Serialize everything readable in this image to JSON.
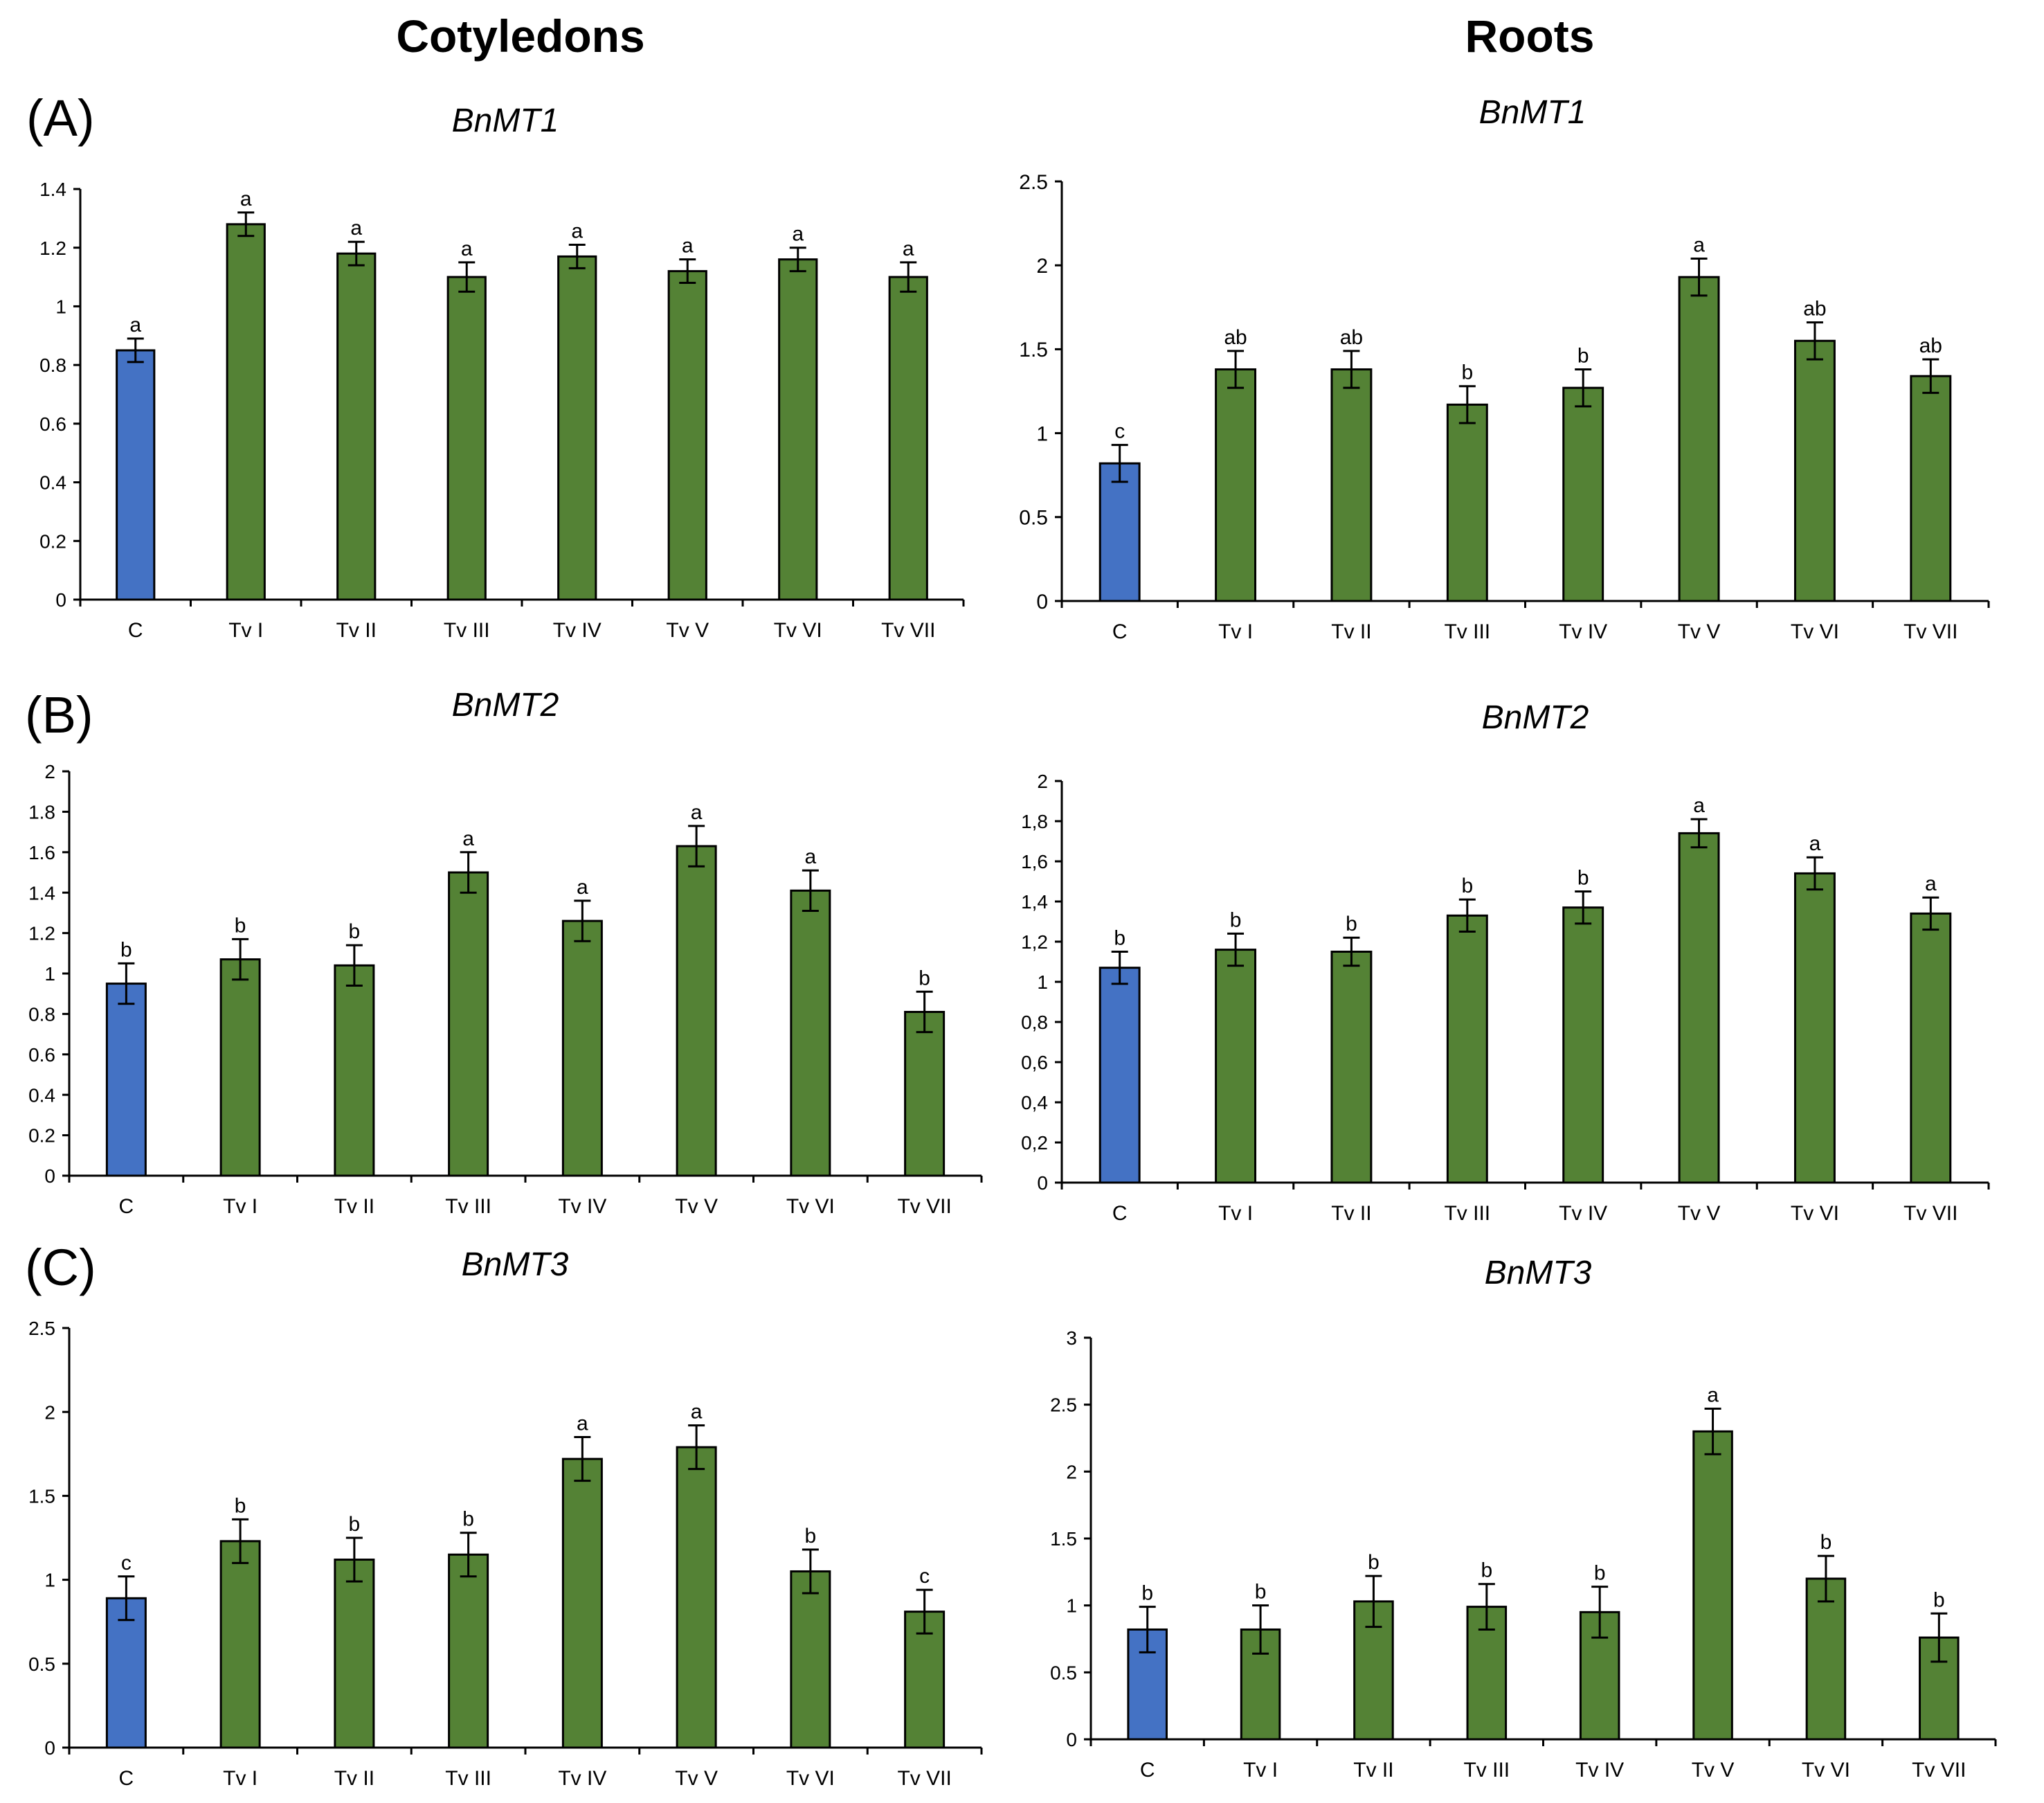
{
  "figure": {
    "column_titles": [
      "Cotyledons",
      "Roots"
    ],
    "panel_labels": [
      "(A)",
      "(B)",
      "(C)"
    ],
    "colors": {
      "control": "#4472c4",
      "treatment": "#548235",
      "stroke": "#000000"
    }
  },
  "chart_data": [
    {
      "type": "bar",
      "title": "BnMT1",
      "tissue": "Cotyledons",
      "panel": "(A)",
      "categories": [
        "C",
        "Tv I",
        "Tv II",
        "Tv III",
        "Tv IV",
        "Tv V",
        "Tv VI",
        "Tv VII"
      ],
      "values": [
        0.85,
        1.28,
        1.18,
        1.1,
        1.17,
        1.12,
        1.16,
        1.1
      ],
      "errors": [
        0.04,
        0.04,
        0.04,
        0.05,
        0.04,
        0.04,
        0.04,
        0.05
      ],
      "letters": [
        "a",
        "a",
        "a",
        "a",
        "a",
        "a",
        "a",
        "a"
      ],
      "ylim": [
        0,
        1.4
      ],
      "yticks": [
        0,
        0.2,
        0.4,
        0.6,
        0.8,
        1,
        1.2,
        1.4
      ],
      "ytick_labels": [
        "0",
        "0.2",
        "0.4",
        "0.6",
        "0.8",
        "1",
        "1.2",
        "1.4"
      ]
    },
    {
      "type": "bar",
      "title": "BnMT1",
      "tissue": "Roots",
      "panel": "(A)",
      "categories": [
        "C",
        "Tv I",
        "Tv II",
        "Tv III",
        "Tv IV",
        "Tv V",
        "Tv VI",
        "Tv VII"
      ],
      "values": [
        0.82,
        1.38,
        1.38,
        1.17,
        1.27,
        1.93,
        1.55,
        1.34
      ],
      "errors": [
        0.11,
        0.11,
        0.11,
        0.11,
        0.11,
        0.11,
        0.11,
        0.1
      ],
      "letters": [
        "c",
        "ab",
        "ab",
        "b",
        "b",
        "a",
        "ab",
        "ab"
      ],
      "ylim": [
        0,
        2.5
      ],
      "yticks": [
        0,
        0.5,
        1,
        1.5,
        2,
        2.5
      ],
      "ytick_labels": [
        "0",
        "0.5",
        "1",
        "1.5",
        "2",
        "2.5"
      ]
    },
    {
      "type": "bar",
      "title": "BnMT2",
      "tissue": "Cotyledons",
      "panel": "(B)",
      "categories": [
        "C",
        "Tv I",
        "Tv II",
        "Tv III",
        "Tv IV",
        "Tv V",
        "Tv VI",
        "Tv VII"
      ],
      "values": [
        0.95,
        1.07,
        1.04,
        1.5,
        1.26,
        1.63,
        1.41,
        0.81
      ],
      "errors": [
        0.1,
        0.1,
        0.1,
        0.1,
        0.1,
        0.1,
        0.1,
        0.1
      ],
      "letters": [
        "b",
        "b",
        "b",
        "a",
        "a",
        "a",
        "a",
        "b"
      ],
      "ylim": [
        0,
        2
      ],
      "yticks": [
        0,
        0.2,
        0.4,
        0.6,
        0.8,
        1,
        1.2,
        1.4,
        1.6,
        1.8,
        2
      ],
      "ytick_labels": [
        "0",
        "0.2",
        "0.4",
        "0.6",
        "0.8",
        "1",
        "1.2",
        "1.4",
        "1.6",
        "1.8",
        "2"
      ]
    },
    {
      "type": "bar",
      "title": "BnMT2",
      "tissue": "Roots",
      "panel": "(B)",
      "categories": [
        "C",
        "Tv I",
        "Tv II",
        "Tv III",
        "Tv IV",
        "Tv V",
        "Tv VI",
        "Tv VII"
      ],
      "values": [
        1.07,
        1.16,
        1.15,
        1.33,
        1.37,
        1.74,
        1.54,
        1.34
      ],
      "errors": [
        0.08,
        0.08,
        0.07,
        0.08,
        0.08,
        0.07,
        0.08,
        0.08
      ],
      "letters": [
        "b",
        "b",
        "b",
        "b",
        "b",
        "a",
        "a",
        "a"
      ],
      "ylim": [
        0,
        2
      ],
      "yticks": [
        0,
        0.2,
        0.4,
        0.6,
        0.8,
        1,
        1.2,
        1.4,
        1.6,
        1.8,
        2
      ],
      "ytick_labels": [
        "0",
        "0,2",
        "0,4",
        "0,6",
        "0,8",
        "1",
        "1,2",
        "1,4",
        "1,6",
        "1,8",
        "2"
      ]
    },
    {
      "type": "bar",
      "title": "BnMT3",
      "tissue": "Cotyledons",
      "panel": "(C)",
      "categories": [
        "C",
        "Tv I",
        "Tv II",
        "Tv III",
        "Tv IV",
        "Tv V",
        "Tv VI",
        "Tv VII"
      ],
      "values": [
        0.89,
        1.23,
        1.12,
        1.15,
        1.72,
        1.79,
        1.05,
        0.81
      ],
      "errors": [
        0.13,
        0.13,
        0.13,
        0.13,
        0.13,
        0.13,
        0.13,
        0.13
      ],
      "letters": [
        "c",
        "b",
        "b",
        "b",
        "a",
        "a",
        "b",
        "c"
      ],
      "ylim": [
        0,
        2.5
      ],
      "yticks": [
        0,
        0.5,
        1,
        1.5,
        2,
        2.5
      ],
      "ytick_labels": [
        "0",
        "0.5",
        "1",
        "1.5",
        "2",
        "2.5"
      ]
    },
    {
      "type": "bar",
      "title": "BnMT3",
      "tissue": "Roots",
      "panel": "(C)",
      "categories": [
        "C",
        "Tv I",
        "Tv II",
        "Tv III",
        "Tv IV",
        "Tv V",
        "Tv VI",
        "Tv VII"
      ],
      "values": [
        0.82,
        0.82,
        1.03,
        0.99,
        0.95,
        2.3,
        1.2,
        0.76
      ],
      "errors": [
        0.17,
        0.18,
        0.19,
        0.17,
        0.19,
        0.17,
        0.17,
        0.18
      ],
      "letters": [
        "b",
        "b",
        "b",
        "b",
        "b",
        "a",
        "b",
        "b"
      ],
      "ylim": [
        0,
        3
      ],
      "yticks": [
        0,
        0.5,
        1,
        1.5,
        2,
        2.5,
        3
      ],
      "ytick_labels": [
        "0",
        "0.5",
        "1",
        "1.5",
        "2",
        "2.5",
        "3"
      ]
    }
  ]
}
